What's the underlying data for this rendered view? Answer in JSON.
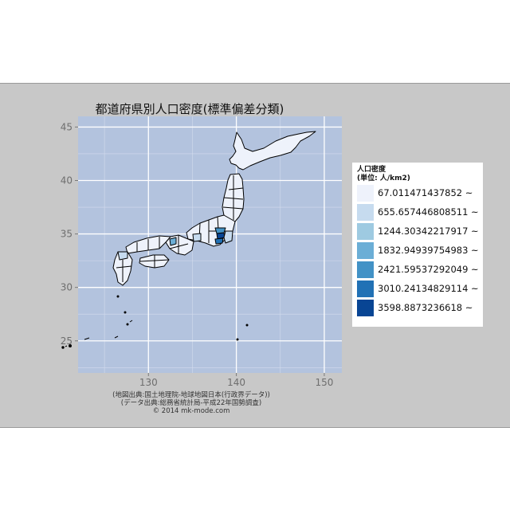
{
  "chart_data": {
    "type": "map",
    "title": "都道府県別人口密度(標準偏差分類)",
    "x_axis": {
      "ticks": [
        130,
        140,
        150
      ],
      "range": [
        122,
        152
      ]
    },
    "y_axis": {
      "ticks": [
        25,
        30,
        35,
        40,
        45
      ],
      "range": [
        22,
        46
      ]
    },
    "grid": true,
    "legend": {
      "title": "人口密度\n(単位: 人/km2)",
      "placement": "right",
      "entries": [
        {
          "label": "67.011471437852 ~",
          "color": "#eef2fb"
        },
        {
          "label": "655.657446808511 ~",
          "color": "#c6dbef"
        },
        {
          "label": "1244.30342217917 ~",
          "color": "#9ecae1"
        },
        {
          "label": "1832.94939754983 ~",
          "color": "#6baed6"
        },
        {
          "label": "2421.59537292049 ~",
          "color": "#4292c6"
        },
        {
          "label": "3010.24134829114 ~",
          "color": "#2171b5"
        },
        {
          "label": "3598.8873236618 ~",
          "color": "#084594"
        }
      ]
    },
    "credits": [
      "(地図出典:国土地理院-地球地図日本(行政界データ))",
      "(データ出典:総務省統計局-平成22年国勢調査)",
      "© 2014 mk-mode.com"
    ]
  }
}
